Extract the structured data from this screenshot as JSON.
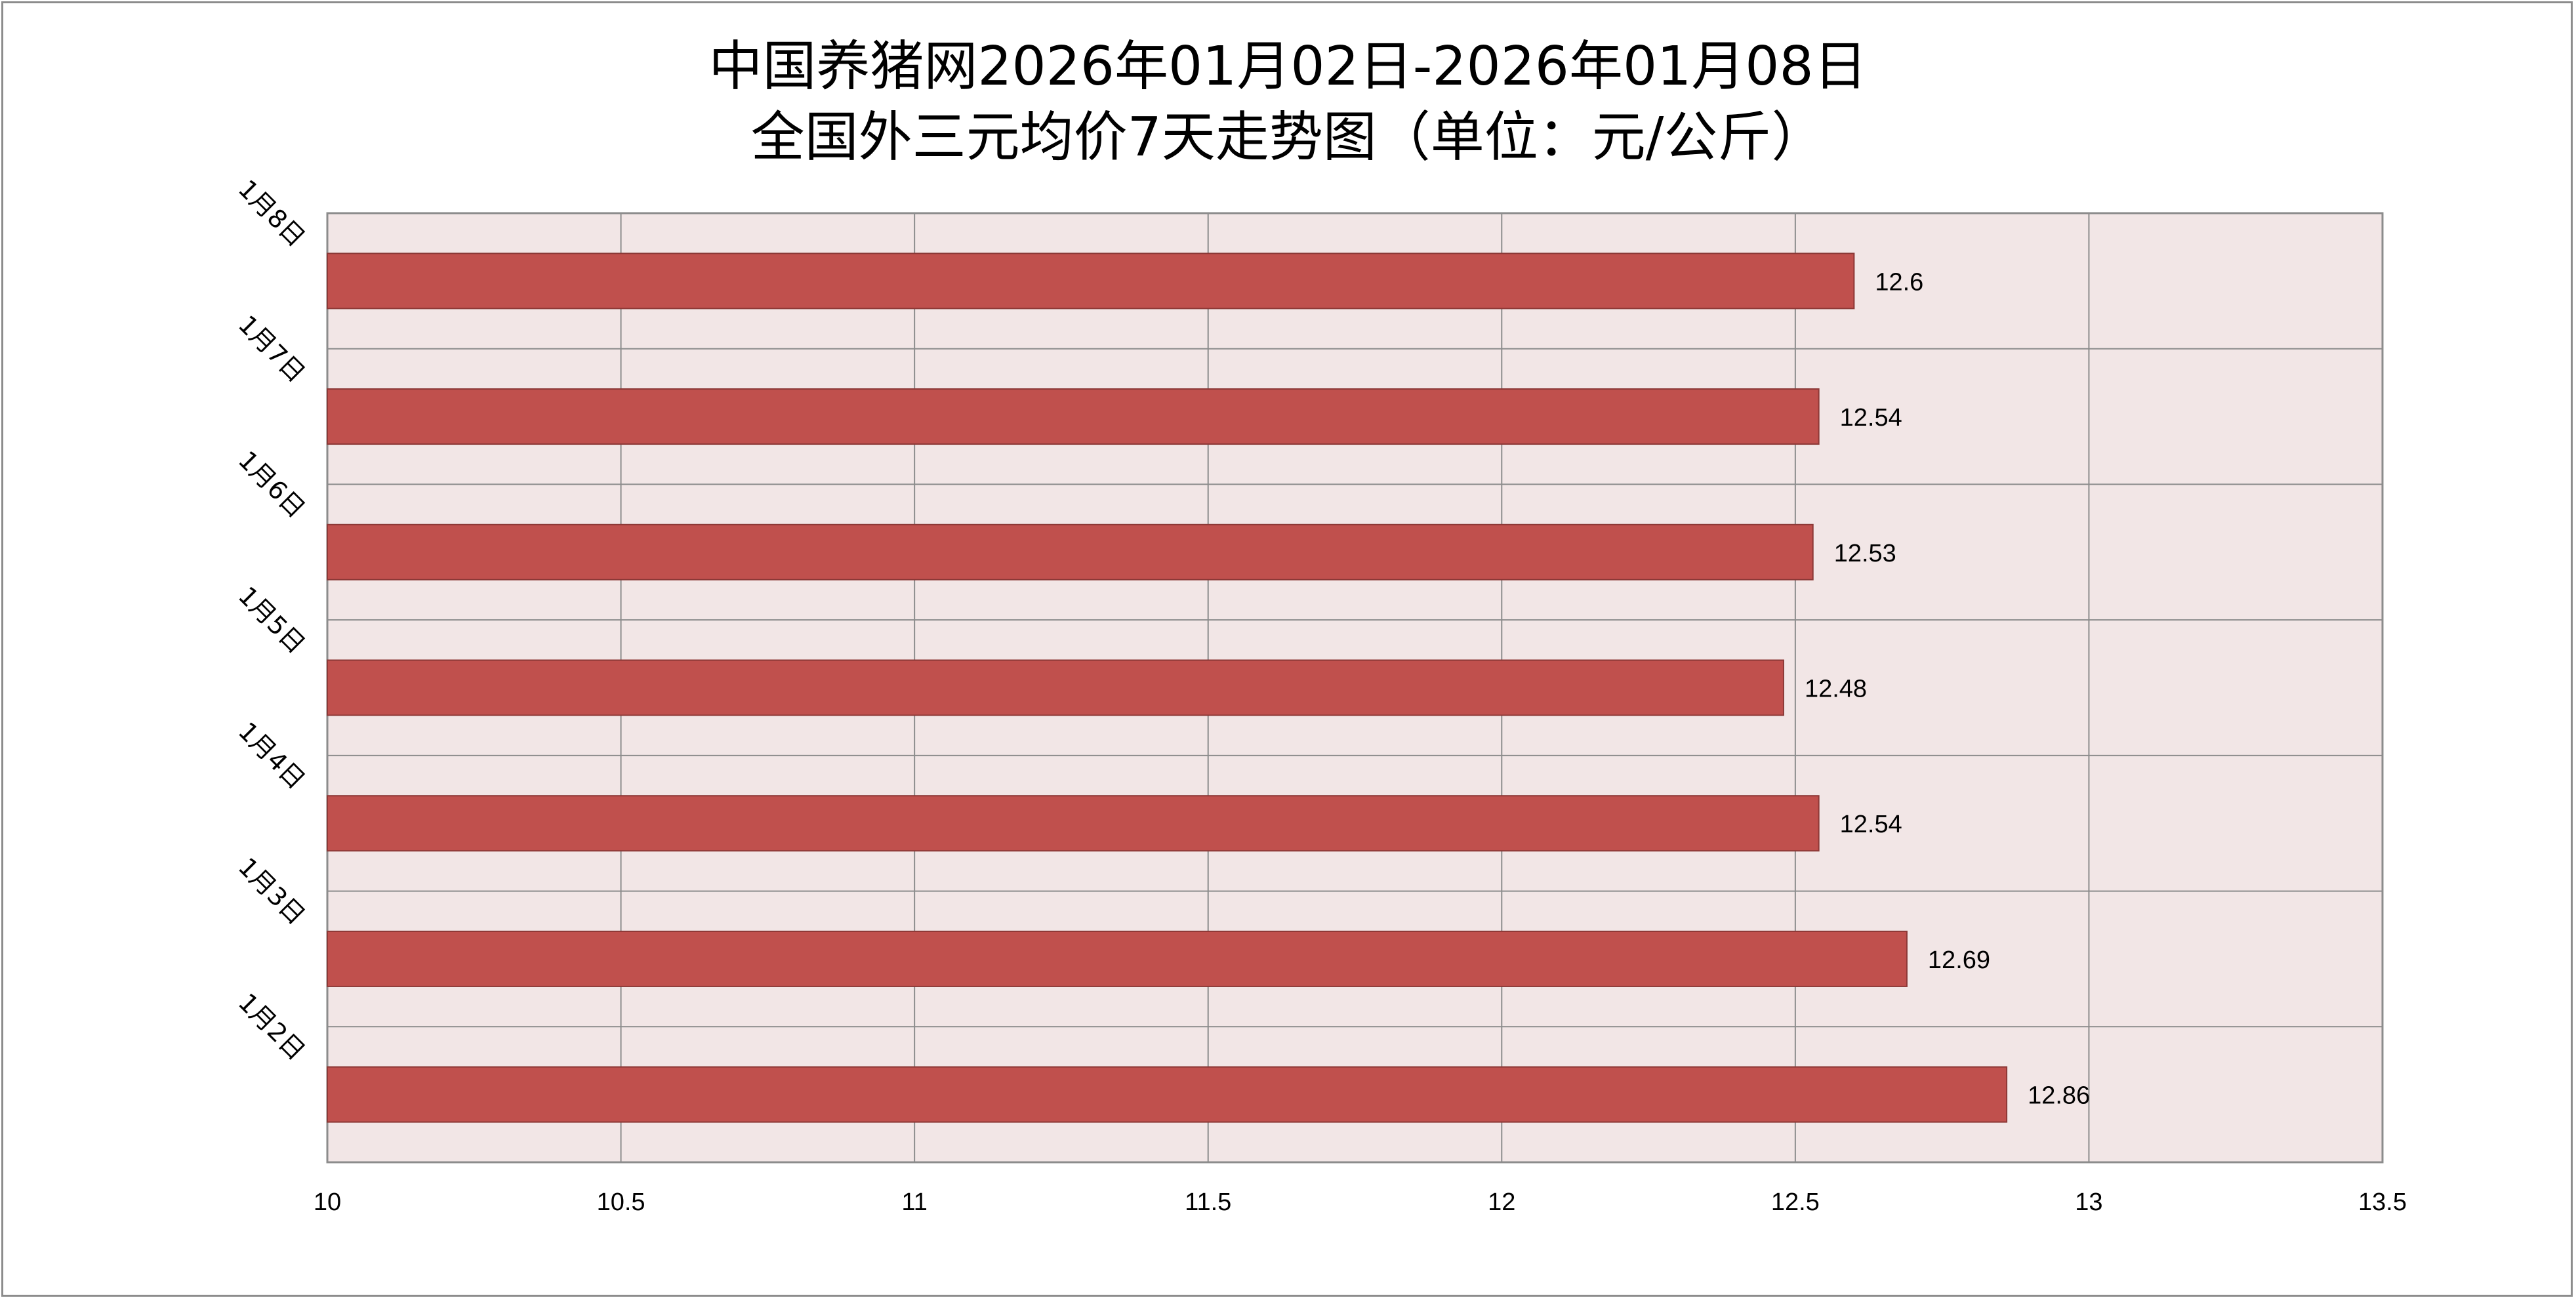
{
  "chart_data": {
    "type": "bar",
    "orientation": "horizontal",
    "title": [
      "中国养猪网2026年01月02日-2026年01月08日",
      "全国外三元均价7天走势图（单位：元/公斤）"
    ],
    "categories": [
      "1月2日",
      "1月3日",
      "1月4日",
      "1月5日",
      "1月6日",
      "1月7日",
      "1月8日"
    ],
    "values": [
      12.86,
      12.69,
      12.54,
      12.48,
      12.53,
      12.54,
      12.6
    ],
    "value_labels": [
      "12.86",
      "12.69",
      "12.54",
      "12.48",
      "12.53",
      "12.54",
      "12.6"
    ],
    "xlim": [
      10,
      13.5
    ],
    "x_ticks": [
      10,
      10.5,
      11,
      11.5,
      12,
      12.5,
      13,
      13.5
    ],
    "x_tick_labels": [
      "10",
      "10.5",
      "11",
      "11.5",
      "12",
      "12.5",
      "13",
      "13.5"
    ],
    "xlabel": "",
    "ylabel": "",
    "grid": true,
    "legend": "none",
    "bar_color": "#c0504d",
    "plot_background": "#f2e6e6",
    "grid_color": "#8c8c8c"
  }
}
